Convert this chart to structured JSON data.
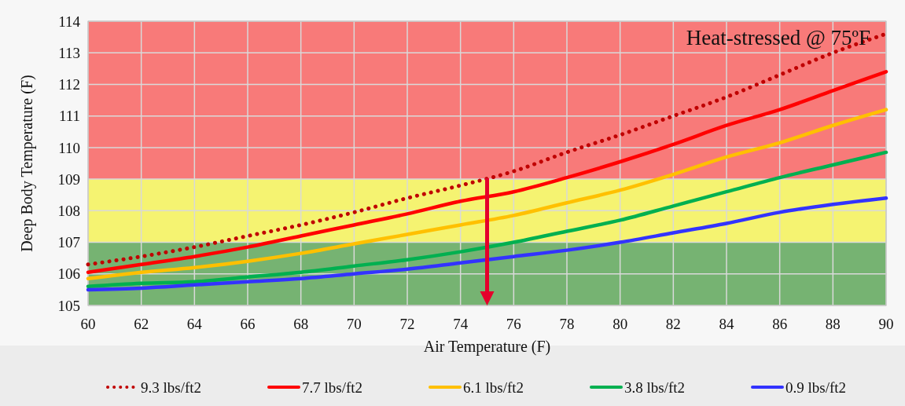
{
  "chart_data": {
    "type": "line",
    "xlabel": "Air Temperature (F)",
    "ylabel": "Deep Body Temperature (F)",
    "x": [
      60,
      62,
      64,
      66,
      68,
      70,
      72,
      74,
      76,
      78,
      80,
      82,
      84,
      86,
      88,
      90
    ],
    "series": [
      {
        "name": "9.3 lbs/ft2",
        "color": "#c00000",
        "line_style": "dotted",
        "values": [
          106.3,
          106.55,
          106.85,
          107.2,
          107.55,
          107.95,
          108.4,
          108.8,
          109.25,
          109.85,
          110.4,
          111.0,
          111.6,
          112.3,
          113.0,
          113.6
        ]
      },
      {
        "name": "7.7 lbs/ft2",
        "color": "#ff0000",
        "values": [
          106.05,
          106.3,
          106.55,
          106.85,
          107.2,
          107.55,
          107.9,
          108.3,
          108.6,
          109.05,
          109.55,
          110.1,
          110.7,
          111.2,
          111.8,
          112.4
        ]
      },
      {
        "name": "6.1 lbs/ft2",
        "color": "#ffc000",
        "values": [
          105.85,
          106.05,
          106.2,
          106.4,
          106.65,
          106.95,
          107.25,
          107.55,
          107.85,
          108.25,
          108.65,
          109.15,
          109.7,
          110.15,
          110.7,
          111.2
        ]
      },
      {
        "name": "3.8 lbs/ft2",
        "color": "#00b050",
        "values": [
          105.6,
          105.7,
          105.75,
          105.9,
          106.05,
          106.25,
          106.45,
          106.7,
          107.0,
          107.35,
          107.7,
          108.15,
          108.6,
          109.05,
          109.45,
          109.85
        ]
      },
      {
        "name": "0.9 lbs/ft2",
        "color": "#3333ff",
        "values": [
          105.5,
          105.55,
          105.65,
          105.75,
          105.85,
          106.0,
          106.15,
          106.35,
          106.55,
          106.75,
          107.0,
          107.3,
          107.6,
          107.95,
          108.2,
          108.4
        ]
      }
    ],
    "xlim": [
      60,
      90
    ],
    "xticks": [
      60,
      62,
      64,
      66,
      68,
      70,
      72,
      74,
      76,
      78,
      80,
      82,
      84,
      86,
      88,
      90
    ],
    "ylim": [
      105,
      114
    ],
    "yticks": [
      105,
      106,
      107,
      108,
      109,
      110,
      111,
      112,
      113,
      114
    ],
    "grid": true,
    "legend": "bottom",
    "line_style": "solid",
    "bands": [
      {
        "axis": "y",
        "from": 105,
        "to": 107,
        "color": "#76b372"
      },
      {
        "axis": "y",
        "from": 107,
        "to": 109,
        "color": "#f5f371"
      },
      {
        "axis": "y",
        "from": 109,
        "to": 114,
        "color": "#f87a79"
      }
    ],
    "ref_lines": [
      {
        "axis": "x",
        "value": 75,
        "color": "#e4002b"
      }
    ],
    "annotations": [
      "Heat-stressed @ 75ºF"
    ]
  }
}
